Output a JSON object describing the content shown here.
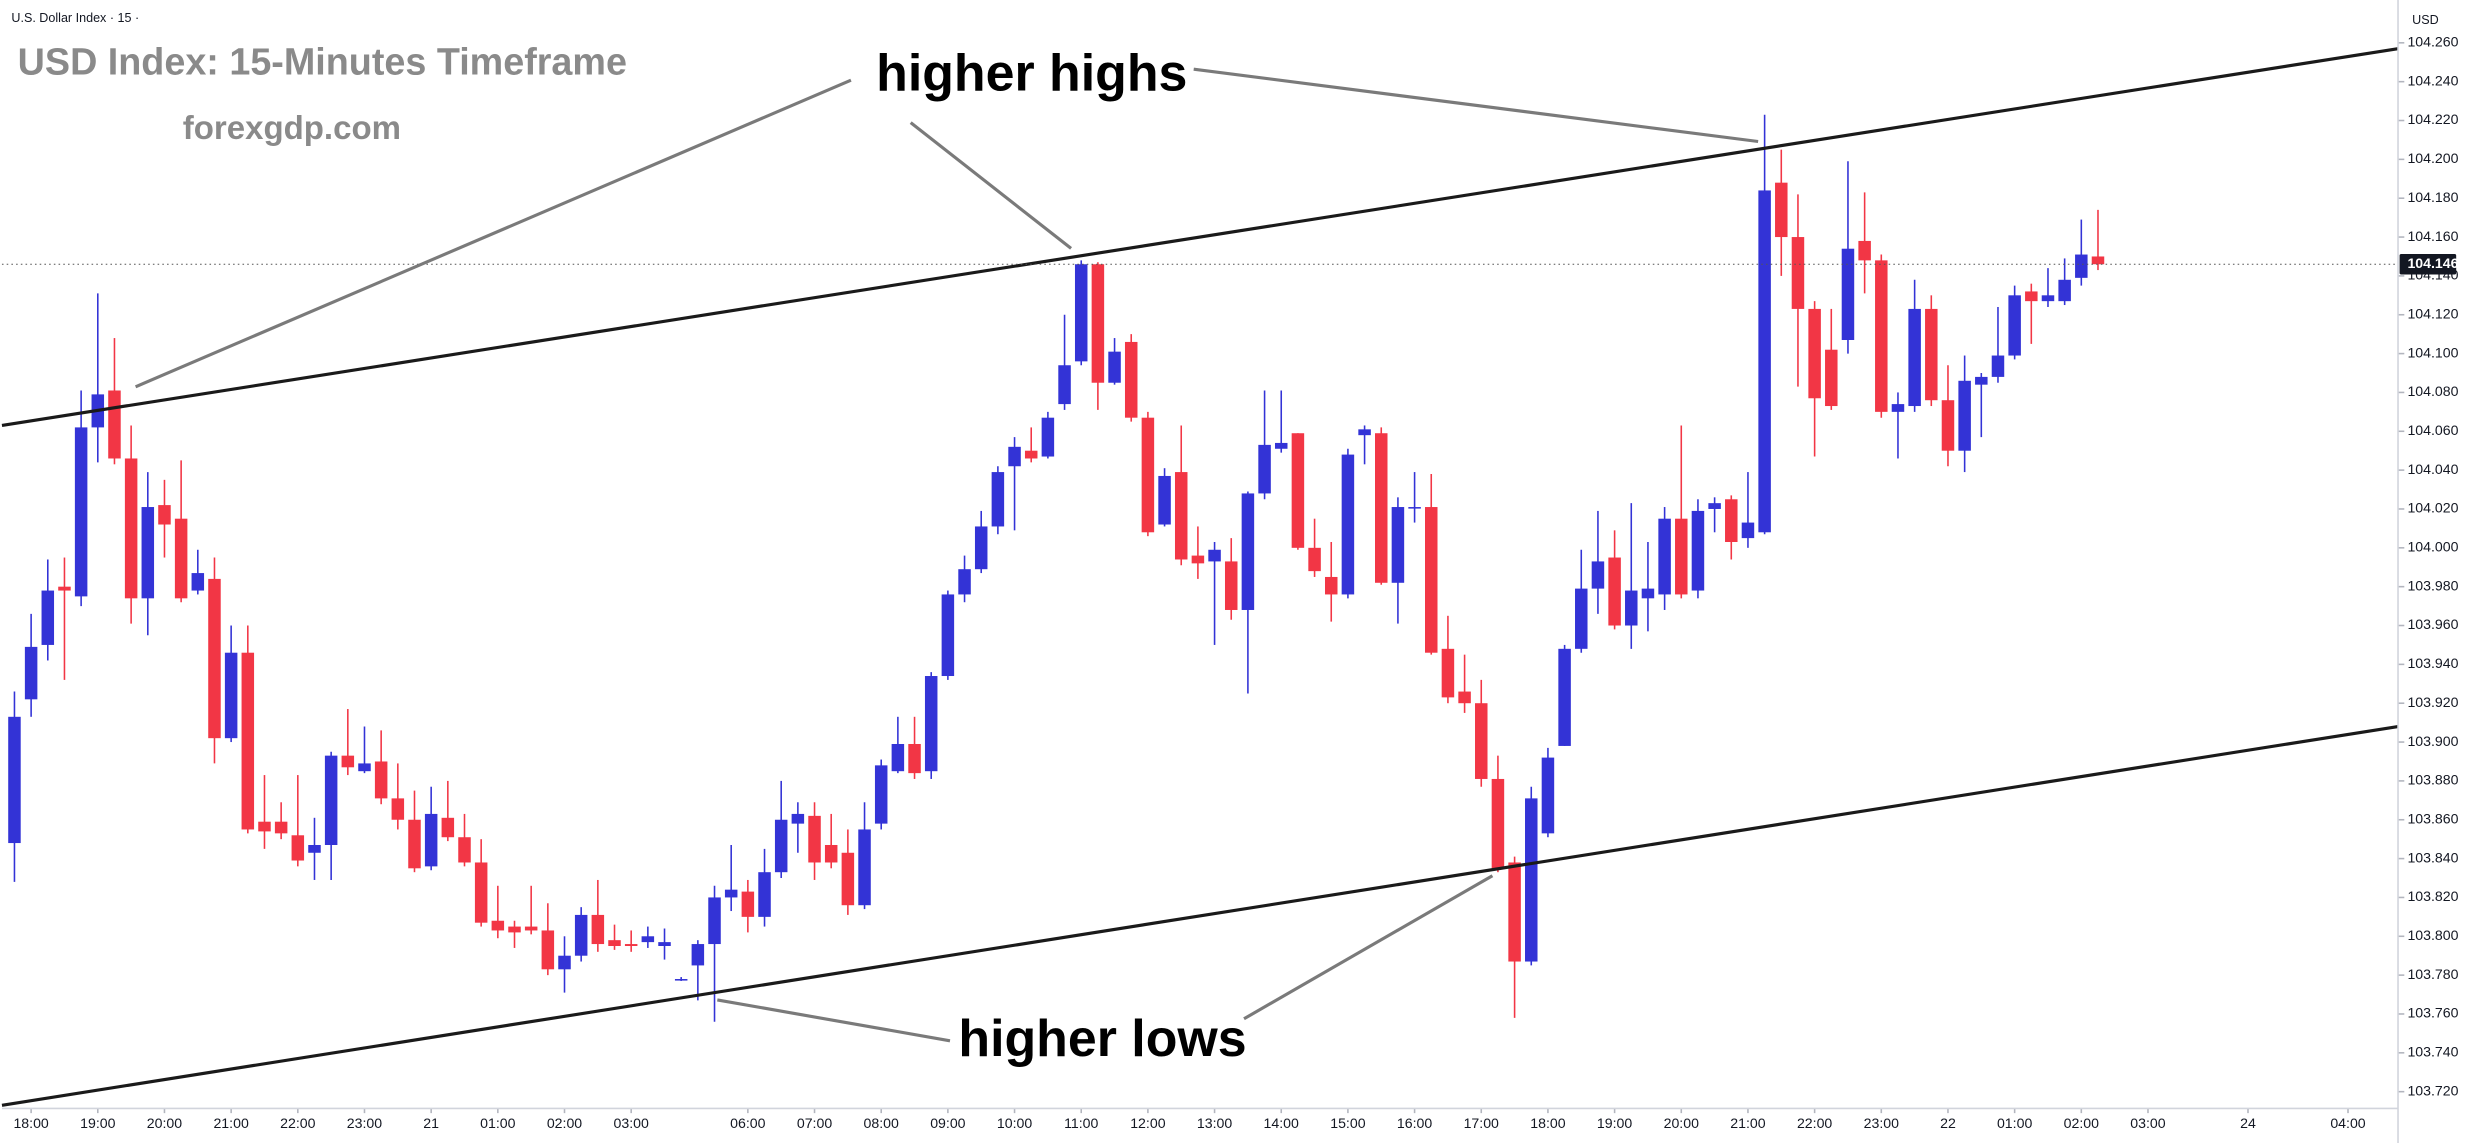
{
  "chart_data": {
    "type": "candlestick",
    "header": "U.S. Dollar Index · 15 ·",
    "title": "USD Index: 15-Minutes Timeframe",
    "subtitle": "forexgdp.com",
    "currency": "USD",
    "annotations": [
      "higher highs",
      "higher lows"
    ],
    "up_color": "#3333d6",
    "down_color": "#f23645",
    "last_price": 104.146,
    "xlim": [
      -0.75,
      143
    ],
    "ylim": [
      103.713,
      104.278
    ],
    "xticks": [
      {
        "value": 1,
        "label": "18:00"
      },
      {
        "value": 5,
        "label": "19:00"
      },
      {
        "value": 9,
        "label": "20:00"
      },
      {
        "value": 13,
        "label": "21:00"
      },
      {
        "value": 17,
        "label": "22:00"
      },
      {
        "value": 21,
        "label": "23:00"
      },
      {
        "value": 25,
        "label": "21"
      },
      {
        "value": 29,
        "label": "01:00"
      },
      {
        "value": 33,
        "label": "02:00"
      },
      {
        "value": 37,
        "label": "03:00"
      },
      {
        "value": 44,
        "label": "06:00"
      },
      {
        "value": 48,
        "label": "07:00"
      },
      {
        "value": 52,
        "label": "08:00"
      },
      {
        "value": 56,
        "label": "09:00"
      },
      {
        "value": 60,
        "label": "10:00"
      },
      {
        "value": 64,
        "label": "11:00"
      },
      {
        "value": 68,
        "label": "12:00"
      },
      {
        "value": 72,
        "label": "13:00"
      },
      {
        "value": 76,
        "label": "14:00"
      },
      {
        "value": 80,
        "label": "15:00"
      },
      {
        "value": 84,
        "label": "16:00"
      },
      {
        "value": 88,
        "label": "17:00"
      },
      {
        "value": 92,
        "label": "18:00"
      },
      {
        "value": 96,
        "label": "19:00"
      },
      {
        "value": 100,
        "label": "20:00"
      },
      {
        "value": 104,
        "label": "21:00"
      },
      {
        "value": 108,
        "label": "22:00"
      },
      {
        "value": 112,
        "label": "23:00"
      },
      {
        "value": 116,
        "label": "22"
      },
      {
        "value": 120,
        "label": "01:00"
      },
      {
        "value": 124,
        "label": "02:00"
      },
      {
        "value": 128,
        "label": "03:00"
      },
      {
        "value": 134,
        "label": "24"
      },
      {
        "value": 140,
        "label": "04:00"
      }
    ],
    "yticks": [
      {
        "value": 104.26,
        "label": "104.260"
      },
      {
        "value": 104.24,
        "label": "104.240"
      },
      {
        "value": 104.22,
        "label": "104.220"
      },
      {
        "value": 104.2,
        "label": "104.200"
      },
      {
        "value": 104.18,
        "label": "104.180"
      },
      {
        "value": 104.16,
        "label": "104.160"
      },
      {
        "value": 104.14,
        "label": "104.140"
      },
      {
        "value": 104.12,
        "label": "104.120"
      },
      {
        "value": 104.1,
        "label": "104.100"
      },
      {
        "value": 104.08,
        "label": "104.080"
      },
      {
        "value": 104.06,
        "label": "104.060"
      },
      {
        "value": 104.04,
        "label": "104.040"
      },
      {
        "value": 104.02,
        "label": "104.020"
      },
      {
        "value": 104.0,
        "label": "104.000"
      },
      {
        "value": 103.98,
        "label": "103.980"
      },
      {
        "value": 103.96,
        "label": "103.960"
      },
      {
        "value": 103.94,
        "label": "103.940"
      },
      {
        "value": 103.92,
        "label": "103.920"
      },
      {
        "value": 103.9,
        "label": "103.900"
      },
      {
        "value": 103.88,
        "label": "103.880"
      },
      {
        "value": 103.86,
        "label": "103.860"
      },
      {
        "value": 103.84,
        "label": "103.840"
      },
      {
        "value": 103.82,
        "label": "103.820"
      },
      {
        "value": 103.8,
        "label": "103.800"
      },
      {
        "value": 103.78,
        "label": "103.780"
      },
      {
        "value": 103.76,
        "label": "103.760"
      },
      {
        "value": 103.74,
        "label": "103.740"
      },
      {
        "value": 103.72,
        "label": "103.720"
      }
    ],
    "trendlines": [
      {
        "x": [
          -0.75,
          143
        ],
        "y": [
          104.063,
          104.257
        ]
      },
      {
        "x": [
          -0.75,
          143
        ],
        "y": [
          103.713,
          103.908
        ]
      }
    ],
    "open": [
      103.848,
      103.922,
      103.95,
      103.98,
      103.975,
      104.062,
      104.081,
      104.046,
      103.974,
      104.022,
      104.015,
      103.978,
      103.984,
      103.902,
      103.946,
      103.859,
      103.859,
      103.852,
      103.843,
      103.847,
      103.893,
      103.885,
      103.89,
      103.871,
      103.86,
      103.836,
      103.861,
      103.851,
      103.838,
      103.808,
      103.805,
      103.805,
      103.803,
      103.783,
      103.79,
      103.811,
      103.798,
      103.796,
      103.797,
      103.795,
      103.778,
      103.785,
      103.796,
      103.82,
      103.823,
      103.81,
      103.833,
      103.858,
      103.862,
      103.847,
      103.843,
      103.816,
      103.858,
      103.885,
      103.899,
      103.885,
      103.934,
      103.976,
      103.989,
      104.011,
      104.042,
      104.05,
      104.047,
      104.074,
      104.096,
      104.146,
      104.085,
      104.106,
      104.067,
      104.012,
      104.039,
      103.996,
      103.993,
      103.993,
      103.968,
      104.028,
      104.051,
      104.059,
      104.0,
      103.985,
      103.976,
      104.058,
      104.059,
      103.982,
      104.021,
      104.021,
      103.948,
      103.926,
      103.92,
      103.881,
      103.838,
      103.787,
      103.853,
      103.898,
      103.948,
      103.979,
      103.995,
      103.96,
      103.974,
      103.976,
      104.015,
      103.978,
      104.02,
      104.025,
      104.005,
      104.008,
      104.188,
      104.16,
      104.123,
      104.102,
      104.107,
      104.158,
      104.148,
      104.07,
      104.073,
      104.123,
      104.076,
      104.05,
      104.084,
      104.088,
      104.099,
      104.132,
      104.127,
      104.127,
      104.139,
      104.15
    ],
    "high": [
      103.926,
      103.966,
      103.994,
      103.995,
      104.081,
      104.131,
      104.108,
      104.063,
      104.039,
      104.035,
      104.045,
      103.999,
      103.995,
      103.96,
      103.96,
      103.883,
      103.869,
      103.883,
      103.861,
      103.895,
      103.917,
      103.908,
      103.906,
      103.889,
      103.875,
      103.877,
      103.88,
      103.863,
      103.85,
      103.826,
      103.808,
      103.826,
      103.817,
      103.8,
      103.815,
      103.829,
      103.806,
      103.803,
      103.805,
      103.804,
      103.779,
      103.798,
      103.826,
      103.847,
      103.829,
      103.845,
      103.88,
      103.869,
      103.869,
      103.863,
      103.855,
      103.869,
      103.891,
      103.913,
      103.913,
      103.936,
      103.978,
      103.996,
      104.019,
      104.042,
      104.057,
      104.062,
      104.07,
      104.12,
      104.148,
      104.147,
      104.108,
      104.11,
      104.07,
      104.041,
      104.063,
      104.011,
      104.003,
      104.005,
      104.029,
      104.081,
      104.081,
      104.059,
      104.015,
      104.003,
      104.051,
      104.063,
      104.062,
      104.026,
      104.039,
      104.038,
      103.965,
      103.945,
      103.932,
      103.893,
      103.841,
      103.877,
      103.897,
      103.95,
      103.999,
      104.019,
      104.009,
      104.023,
      104.003,
      104.021,
      104.063,
      104.025,
      104.026,
      104.027,
      104.039,
      104.223,
      104.205,
      104.182,
      104.127,
      104.123,
      104.199,
      104.183,
      104.151,
      104.08,
      104.138,
      104.13,
      104.094,
      104.099,
      104.09,
      104.124,
      104.135,
      104.136,
      104.144,
      104.149,
      104.169,
      104.174
    ],
    "low": [
      103.828,
      103.913,
      103.942,
      103.932,
      103.97,
      104.044,
      104.043,
      103.961,
      103.955,
      103.995,
      103.972,
      103.976,
      103.889,
      103.9,
      103.853,
      103.845,
      103.85,
      103.836,
      103.829,
      103.829,
      103.883,
      103.884,
      103.868,
      103.855,
      103.833,
      103.834,
      103.849,
      103.836,
      103.805,
      103.799,
      103.794,
      103.801,
      103.78,
      103.771,
      103.787,
      103.792,
      103.793,
      103.792,
      103.794,
      103.788,
      103.777,
      103.767,
      103.756,
      103.813,
      103.802,
      103.805,
      103.83,
      103.843,
      103.829,
      103.835,
      103.811,
      103.814,
      103.855,
      103.884,
      103.881,
      103.881,
      103.932,
      103.972,
      103.987,
      104.007,
      104.009,
      104.044,
      104.046,
      104.071,
      104.094,
      104.071,
      104.084,
      104.065,
      104.006,
      104.011,
      103.991,
      103.984,
      103.95,
      103.963,
      103.925,
      104.025,
      104.049,
      103.999,
      103.985,
      103.962,
      103.974,
      104.043,
      103.981,
      103.961,
      104.013,
      103.945,
      103.92,
      103.915,
      103.877,
      103.833,
      103.758,
      103.785,
      103.851,
      103.898,
      103.946,
      103.966,
      103.958,
      103.948,
      103.957,
      103.968,
      103.974,
      103.974,
      104.008,
      103.994,
      104.0,
      104.007,
      104.14,
      104.083,
      104.047,
      104.071,
      104.1,
      104.131,
      104.067,
      104.046,
      104.07,
      104.073,
      104.042,
      104.039,
      104.057,
      104.085,
      104.097,
      104.105,
      104.124,
      104.125,
      104.135,
      104.143
    ],
    "close": [
      103.913,
      103.949,
      103.978,
      103.978,
      104.062,
      104.079,
      104.046,
      103.974,
      104.021,
      104.012,
      103.974,
      103.987,
      103.902,
      103.946,
      103.855,
      103.854,
      103.853,
      103.839,
      103.847,
      103.893,
      103.887,
      103.889,
      103.871,
      103.86,
      103.835,
      103.863,
      103.851,
      103.838,
      103.807,
      103.803,
      103.802,
      103.803,
      103.783,
      103.79,
      103.811,
      103.796,
      103.795,
      103.795,
      103.8,
      103.797,
      103.778,
      103.796,
      103.82,
      103.824,
      103.81,
      103.833,
      103.86,
      103.863,
      103.838,
      103.838,
      103.816,
      103.855,
      103.888,
      103.899,
      103.884,
      103.934,
      103.976,
      103.989,
      104.011,
      104.039,
      104.052,
      104.046,
      104.067,
      104.094,
      104.146,
      104.085,
      104.101,
      104.067,
      104.008,
      104.037,
      103.994,
      103.992,
      103.999,
      103.968,
      104.028,
      104.053,
      104.054,
      104.0,
      103.988,
      103.976,
      104.048,
      104.061,
      103.982,
      104.021,
      104.021,
      103.946,
      103.923,
      103.92,
      103.881,
      103.835,
      103.787,
      103.871,
      103.892,
      103.948,
      103.979,
      103.993,
      103.96,
      103.978,
      103.979,
      104.015,
      103.976,
      104.019,
      104.023,
      104.003,
      104.013,
      104.184,
      104.16,
      104.123,
      104.077,
      104.073,
      104.154,
      104.148,
      104.07,
      104.074,
      104.123,
      104.076,
      104.05,
      104.086,
      104.088,
      104.099,
      104.13,
      104.127,
      104.13,
      104.138,
      104.151,
      104.146
    ]
  }
}
